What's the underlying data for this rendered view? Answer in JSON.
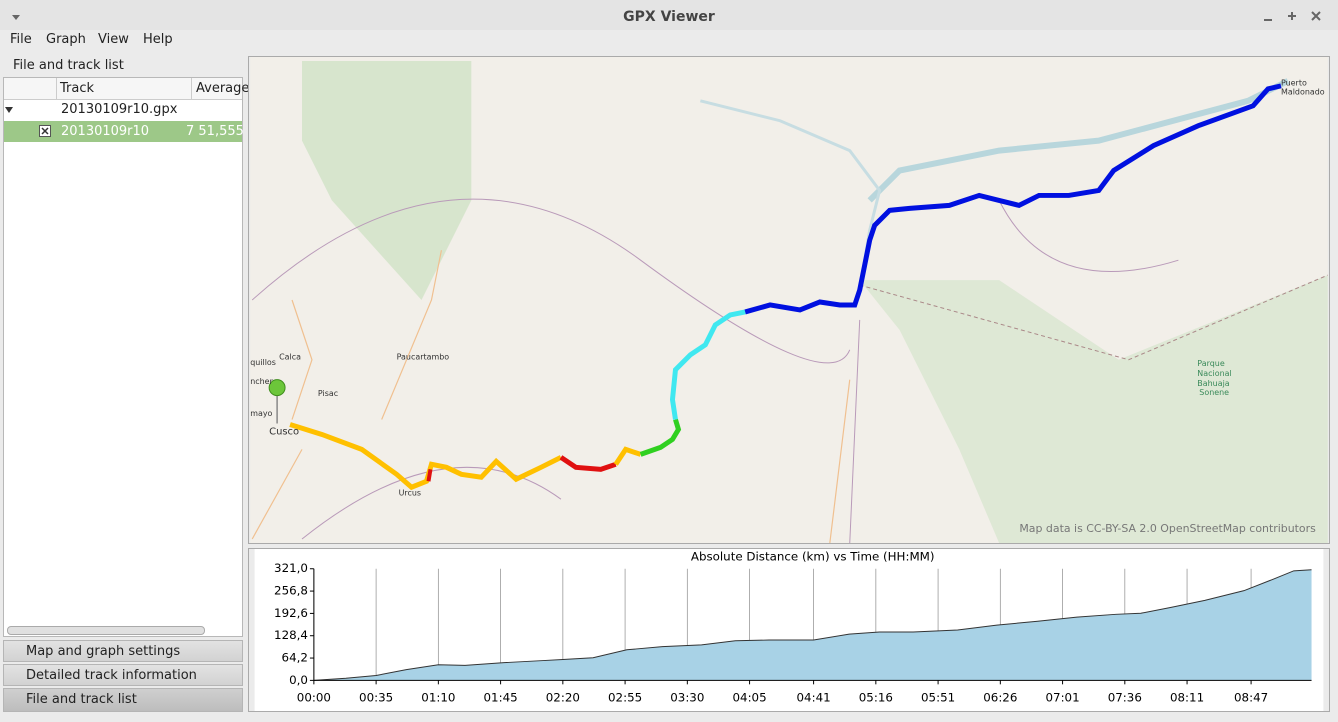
{
  "window": {
    "title": "GPX Viewer"
  },
  "menu": [
    "File",
    "Graph",
    "View",
    "Help"
  ],
  "sidebar": {
    "title": "File and track list",
    "columns": [
      "Track",
      "Average"
    ],
    "file": "20130109r10.gpx",
    "track": {
      "name": "20130109r10",
      "average": "7 51,555"
    }
  },
  "panels": [
    "Map and graph settings",
    "Detailed track information",
    "File and track list"
  ],
  "map": {
    "labels": [
      "Puerto",
      "Maldonado",
      "Calca",
      "Paucartambo",
      "quillos",
      "ncher",
      "Pisac",
      "mayo",
      "Cusco",
      "Urcus",
      "Parque",
      "Nacional",
      "Bahuaja",
      "Sonene"
    ],
    "attribution": "Map data is CC-BY-SA 2.0 OpenStreetMap contributors"
  },
  "chart_data": {
    "type": "area",
    "title": "Absolute Distance (km) vs Time (HH:MM)",
    "x": [
      0,
      18,
      35,
      52,
      70,
      85,
      107,
      129,
      140,
      157,
      176,
      196,
      218,
      237,
      256,
      281,
      301,
      318,
      337,
      362,
      384,
      407,
      429,
      451,
      465,
      482,
      501,
      523,
      540,
      551,
      561
    ],
    "values": [
      0,
      6,
      14,
      31,
      45,
      43,
      51,
      57,
      60,
      65,
      88,
      97,
      102,
      114,
      116,
      116,
      133,
      139,
      139,
      145,
      159,
      170,
      182,
      190,
      193,
      210,
      230,
      258,
      292,
      315,
      318
    ],
    "color": "#a8d2e6",
    "line_color": "#333333",
    "xlim": [
      0,
      561
    ],
    "ylim": [
      0,
      321
    ],
    "xticks": [
      {
        "value": 0,
        "label": "00:00"
      },
      {
        "value": 35,
        "label": "00:35"
      },
      {
        "value": 70,
        "label": "01:10"
      },
      {
        "value": 105,
        "label": "01:45"
      },
      {
        "value": 140,
        "label": "02:20"
      },
      {
        "value": 175,
        "label": "02:55"
      },
      {
        "value": 210,
        "label": "03:30"
      },
      {
        "value": 245,
        "label": "04:05"
      },
      {
        "value": 281,
        "label": "04:41"
      },
      {
        "value": 316,
        "label": "05:16"
      },
      {
        "value": 351,
        "label": "05:51"
      },
      {
        "value": 386,
        "label": "06:26"
      },
      {
        "value": 421,
        "label": "07:01"
      },
      {
        "value": 456,
        "label": "07:36"
      },
      {
        "value": 491,
        "label": "08:11"
      },
      {
        "value": 527,
        "label": "08:47"
      }
    ],
    "yticks": [
      {
        "value": 0,
        "label": "0,0"
      },
      {
        "value": 64.2,
        "label": "64,2"
      },
      {
        "value": 128.4,
        "label": "128,4"
      },
      {
        "value": 192.6,
        "label": "192,6"
      },
      {
        "value": 256.8,
        "label": "256,8"
      },
      {
        "value": 321,
        "label": "321,0"
      }
    ],
    "grid": "x"
  }
}
